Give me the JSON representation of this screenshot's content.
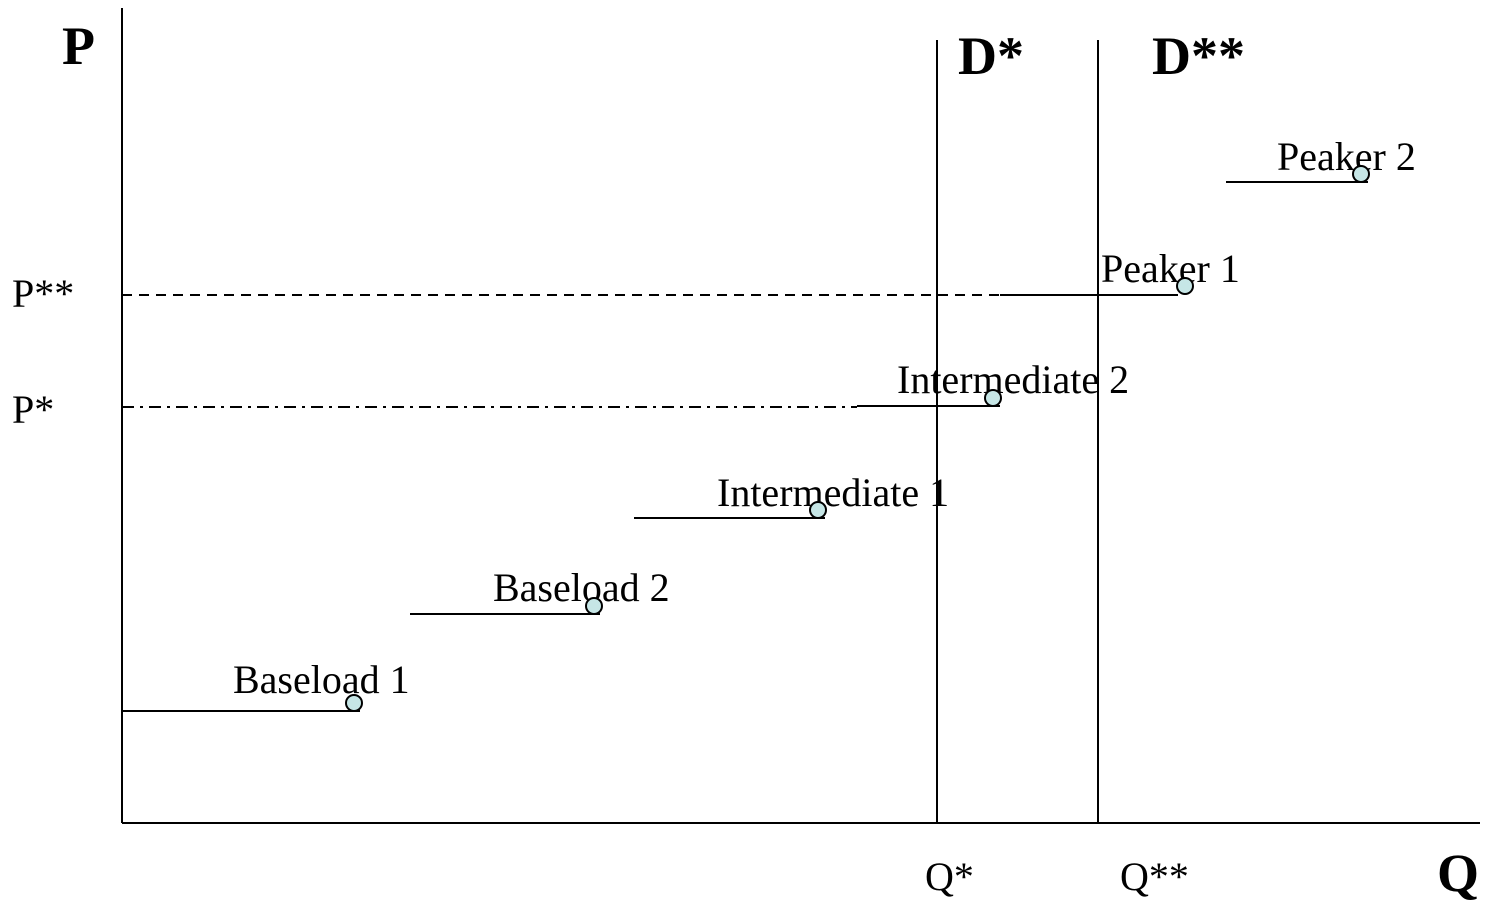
{
  "axes": {
    "y_label": "P",
    "x_label": "Q"
  },
  "price_levels": [
    {
      "label": "P**"
    },
    {
      "label": "P*"
    }
  ],
  "demand": [
    {
      "label": "D*",
      "quantity_label": "Q*"
    },
    {
      "label": "D**",
      "quantity_label": "Q**"
    }
  ],
  "plants": [
    {
      "label": "Baseload 1"
    },
    {
      "label": "Baseload 2"
    },
    {
      "label": "Intermediate 1"
    },
    {
      "label": "Intermediate 2"
    },
    {
      "label": "Peaker 1"
    },
    {
      "label": "Peaker 2"
    }
  ]
}
